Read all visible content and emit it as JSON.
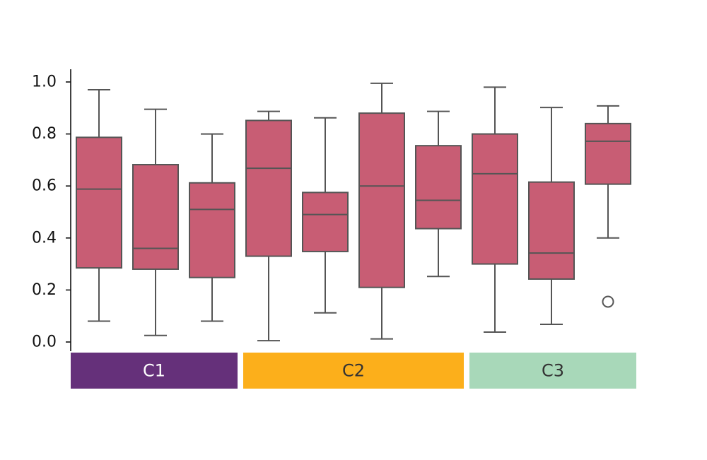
{
  "chart_data": {
    "type": "boxplot",
    "title": "",
    "xlabel": "",
    "ylabel": "",
    "ylim": [
      0.0,
      1.0
    ],
    "yticks": [
      "0.0",
      "0.2",
      "0.4",
      "0.6",
      "0.8",
      "1.0"
    ],
    "grid": false,
    "box_color": "#c85d74",
    "line_color": "#555555",
    "groups": [
      {
        "label": "C1",
        "color": "#65307a",
        "text_color": "#ffffff",
        "box_count": 3
      },
      {
        "label": "C2",
        "color": "#fcaf1b",
        "text_color": "#333333",
        "box_count": 4
      },
      {
        "label": "C3",
        "color": "#a8d8b9",
        "text_color": "#333333",
        "box_count": 3
      }
    ],
    "boxes": [
      {
        "group": "C1",
        "whislo": 0.08,
        "q1": 0.285,
        "median": 0.588,
        "q3": 0.787,
        "whishi": 0.97,
        "fliers": []
      },
      {
        "group": "C1",
        "whislo": 0.025,
        "q1": 0.28,
        "median": 0.36,
        "q3": 0.682,
        "whishi": 0.895,
        "fliers": []
      },
      {
        "group": "C1",
        "whislo": 0.08,
        "q1": 0.248,
        "median": 0.51,
        "q3": 0.612,
        "whishi": 0.8,
        "fliers": []
      },
      {
        "group": "C2",
        "whislo": 0.005,
        "q1": 0.33,
        "median": 0.668,
        "q3": 0.852,
        "whishi": 0.887,
        "fliers": []
      },
      {
        "group": "C2",
        "whislo": 0.112,
        "q1": 0.348,
        "median": 0.49,
        "q3": 0.575,
        "whishi": 0.862,
        "fliers": []
      },
      {
        "group": "C2",
        "whislo": 0.012,
        "q1": 0.21,
        "median": 0.6,
        "q3": 0.88,
        "whishi": 0.995,
        "fliers": []
      },
      {
        "group": "C2",
        "whislo": 0.252,
        "q1": 0.436,
        "median": 0.545,
        "q3": 0.755,
        "whishi": 0.887,
        "fliers": []
      },
      {
        "group": "C3",
        "whislo": 0.038,
        "q1": 0.3,
        "median": 0.647,
        "q3": 0.8,
        "whishi": 0.98,
        "fliers": []
      },
      {
        "group": "C3",
        "whislo": 0.068,
        "q1": 0.242,
        "median": 0.342,
        "q3": 0.615,
        "whishi": 0.902,
        "fliers": []
      },
      {
        "group": "C3",
        "whislo": 0.4,
        "q1": 0.607,
        "median": 0.772,
        "q3": 0.84,
        "whishi": 0.908,
        "fliers": [
          0.155
        ]
      }
    ]
  }
}
